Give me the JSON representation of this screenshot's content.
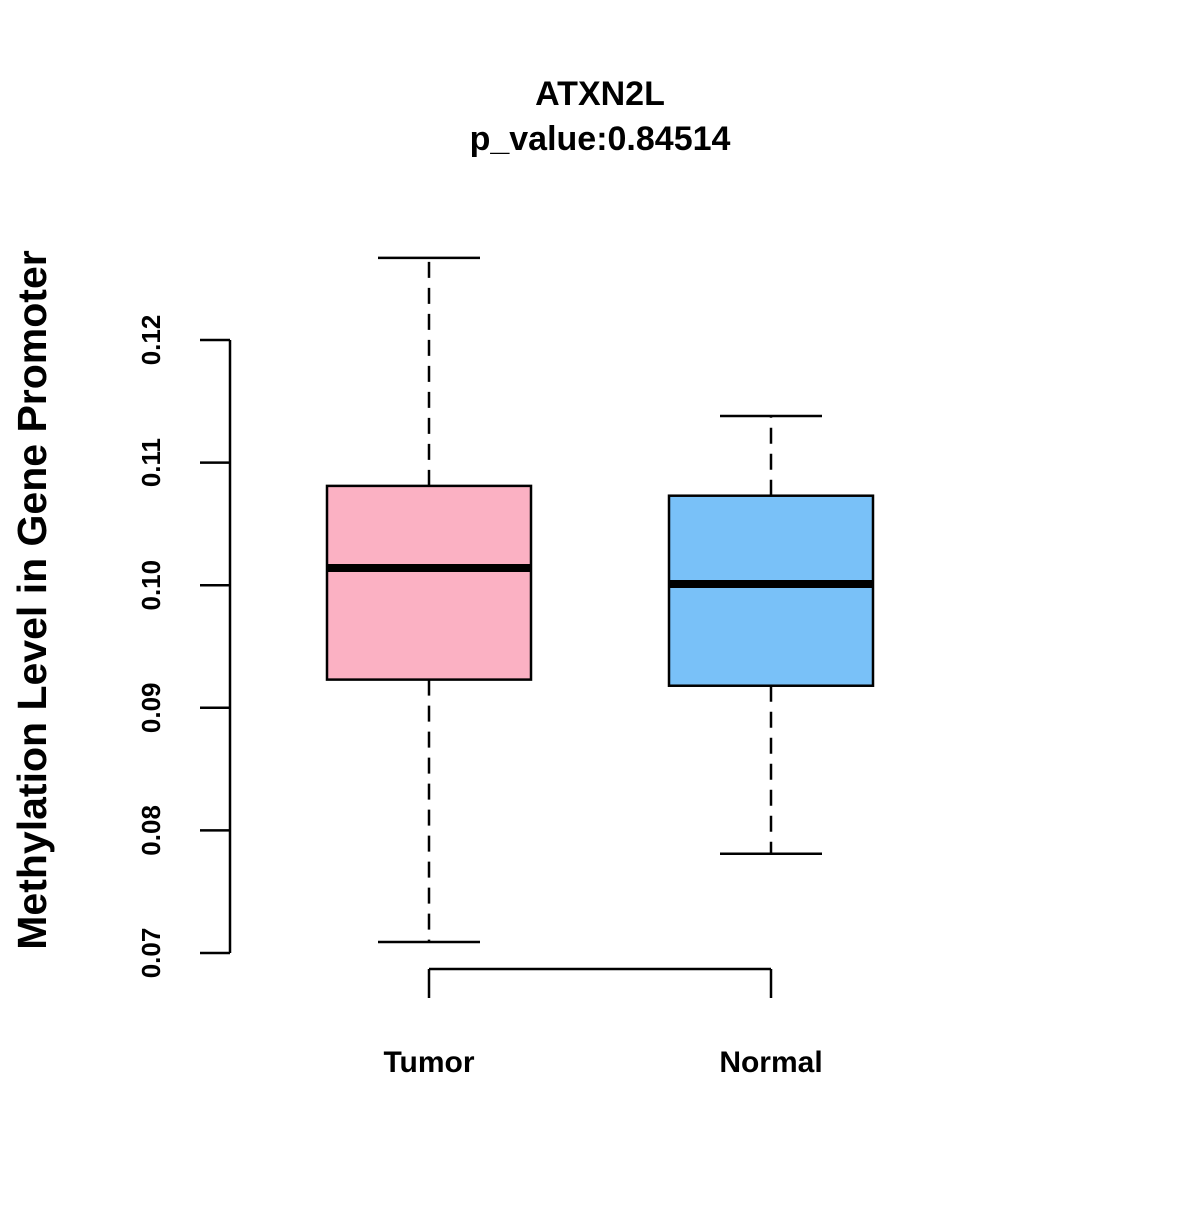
{
  "chart_data": {
    "type": "boxplot",
    "title": "ATXN2L",
    "subtitle": "p_value:0.84514",
    "xlabel": "",
    "ylabel": "Methylation Level in Gene Promoter",
    "ylim": [
      0.07,
      0.12
    ],
    "yticks": [
      0.07,
      0.08,
      0.09,
      0.1,
      0.11,
      0.12
    ],
    "ytick_labels": [
      "0.07",
      "0.08",
      "0.09",
      "0.10",
      "0.11",
      "0.12"
    ],
    "grid": false,
    "categories": [
      "Tumor",
      "Normal"
    ],
    "series": [
      {
        "name": "Tumor",
        "color": "#FBB1C3",
        "min": 0.0709,
        "q1": 0.0923,
        "median": 0.1014,
        "q3": 0.1081,
        "max": 0.1267
      },
      {
        "name": "Normal",
        "color": "#79C1F8",
        "min": 0.0781,
        "q1": 0.0918,
        "median": 0.1001,
        "q3": 0.1073,
        "max": 0.1138
      }
    ]
  }
}
